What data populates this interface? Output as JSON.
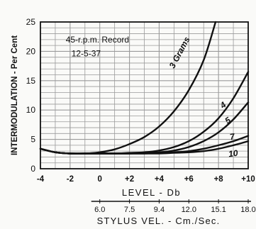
{
  "chart_data": {
    "type": "line",
    "annotation": [
      "45-r.p.m. Record",
      "12-5-37"
    ],
    "ylabel": "INTERMODULATION - Per Cent",
    "xlabel": "LEVEL - Db",
    "x2label": "STYLUS VEL. - Cm./Sec.",
    "x_ticks": [
      "-4",
      "-2",
      "0",
      "+2",
      "+4",
      "+6",
      "+8",
      "+10"
    ],
    "y_ticks": [
      "0",
      "5",
      "10",
      "15",
      "20",
      "25"
    ],
    "x2_ticks": [
      {
        "label": "6.0",
        "at": 0
      },
      {
        "label": "7.5",
        "at": 2
      },
      {
        "label": "9.4",
        "at": 4
      },
      {
        "label": "12.0",
        "at": 6
      },
      {
        "label": "15.1",
        "at": 8
      },
      {
        "label": "18.0",
        "at": 10
      }
    ],
    "xlim": [
      -4,
      10
    ],
    "ylim": [
      0,
      25
    ],
    "grid": true,
    "series": [
      {
        "name": "3 Grams",
        "x": [
          -4,
          -3,
          -2,
          -1,
          0,
          1,
          2,
          3,
          4,
          5,
          6,
          7,
          7.8
        ],
        "y": [
          3.4,
          2.8,
          2.6,
          2.6,
          2.8,
          3.3,
          4.2,
          5.4,
          7.2,
          9.8,
          13.4,
          18.5,
          25
        ]
      },
      {
        "name": "4",
        "x": [
          -4,
          -3,
          -2,
          -1,
          0,
          1,
          2,
          3,
          4,
          5,
          6,
          7,
          8,
          9,
          10
        ],
        "y": [
          3.4,
          2.8,
          2.6,
          2.6,
          2.6,
          2.6,
          2.7,
          2.8,
          3.1,
          3.7,
          4.7,
          6.3,
          8.6,
          12.0,
          16.5
        ]
      },
      {
        "name": "5",
        "x": [
          -4,
          -3,
          -2,
          -1,
          0,
          1,
          2,
          3,
          4,
          5,
          6,
          7,
          8,
          9,
          10
        ],
        "y": [
          3.4,
          2.8,
          2.6,
          2.6,
          2.6,
          2.6,
          2.6,
          2.7,
          2.8,
          3.1,
          3.7,
          4.7,
          6.2,
          8.4,
          11.3
        ]
      },
      {
        "name": "7",
        "x": [
          -4,
          -3,
          -2,
          -1,
          0,
          1,
          2,
          3,
          4,
          5,
          6,
          7,
          8,
          9,
          10
        ],
        "y": [
          3.4,
          2.8,
          2.6,
          2.6,
          2.6,
          2.6,
          2.6,
          2.6,
          2.7,
          2.8,
          3.0,
          3.4,
          4.0,
          4.7,
          5.6
        ]
      },
      {
        "name": "10",
        "x": [
          -4,
          -3,
          -2,
          -1,
          0,
          1,
          2,
          3,
          4,
          5,
          6,
          7,
          8,
          9,
          10
        ],
        "y": [
          3.4,
          2.8,
          2.6,
          2.6,
          2.6,
          2.6,
          2.6,
          2.6,
          2.6,
          2.7,
          2.8,
          3.0,
          3.4,
          4.0,
          4.7
        ]
      }
    ]
  }
}
